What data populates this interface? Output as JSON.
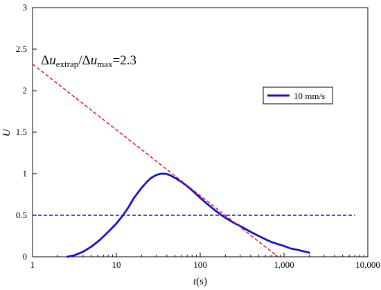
{
  "chart_data": {
    "type": "line",
    "xscale": "log",
    "xlim": [
      1,
      10000
    ],
    "ylim": [
      0,
      3
    ],
    "grid": false,
    "legend_position": "top-right",
    "xlabel": {
      "main": "t",
      "rest": "(s)"
    },
    "ylabel": "U",
    "xticks": [
      1,
      10,
      100,
      1000,
      10000
    ],
    "xtick_labels": [
      "1",
      "10",
      "100",
      "1,000",
      "10,000"
    ],
    "yticks": [
      0,
      0.5,
      1,
      1.5,
      2,
      2.5,
      3
    ],
    "ytick_labels": [
      "0",
      "0.5",
      "1",
      "1.5",
      "2",
      "2.5",
      "3"
    ],
    "annotation": {
      "delta1": "Δ",
      "u1": "u",
      "sub1": "extrap",
      "slash": "/",
      "delta2": "Δ",
      "u2": "u",
      "sub2": "max",
      "value": "=2.3"
    },
    "series": [
      {
        "name": "10 mm/s",
        "color": "#1010CC",
        "style": "solid",
        "x": [
          2.6,
          3.2,
          4,
          5,
          6.3,
          8,
          10,
          12,
          14,
          16,
          18,
          20,
          23,
          26,
          30,
          34,
          38,
          42,
          46,
          50,
          60,
          70,
          80,
          100,
          120,
          150,
          180,
          200,
          250,
          300,
          400,
          500,
          600,
          700,
          800,
          1000,
          1200,
          1500,
          1800,
          2000
        ],
        "y": [
          0.0,
          0.02,
          0.06,
          0.12,
          0.2,
          0.3,
          0.4,
          0.5,
          0.6,
          0.7,
          0.77,
          0.83,
          0.9,
          0.95,
          0.985,
          1.0,
          1.0,
          0.99,
          0.97,
          0.95,
          0.9,
          0.85,
          0.8,
          0.71,
          0.64,
          0.56,
          0.5,
          0.47,
          0.41,
          0.37,
          0.3,
          0.25,
          0.21,
          0.18,
          0.16,
          0.13,
          0.1,
          0.08,
          0.06,
          0.05
        ]
      },
      {
        "name": "",
        "color": "#EE1111",
        "style": "dashed",
        "x": [
          1,
          850
        ],
        "y": [
          2.32,
          0
        ]
      },
      {
        "name": "",
        "color": "#1010CC",
        "style": "dashed",
        "x": [
          1,
          7000
        ],
        "y": [
          0.5,
          0.5
        ]
      }
    ]
  }
}
